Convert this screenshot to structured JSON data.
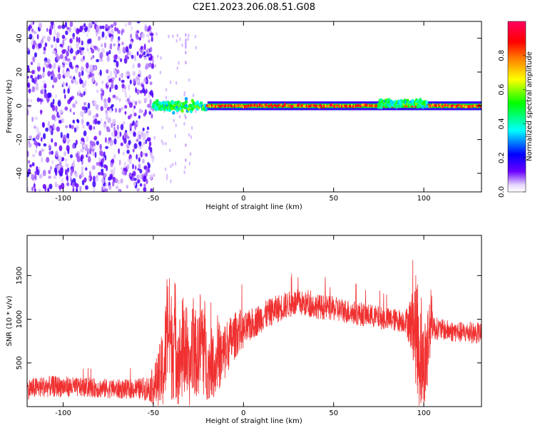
{
  "figure": {
    "title": "C2E1.2023.206.08.51.G08"
  },
  "chart_data": [
    {
      "type": "heatmap",
      "xlabel": "Height of straight line (km)",
      "ylabel": "Frequency (Hz)",
      "xlim": [
        -120,
        132
      ],
      "ylim": [
        -51,
        50
      ],
      "xticks": [
        -100,
        -50,
        0,
        50,
        100
      ],
      "yticks": [
        -40,
        -20,
        0,
        20,
        40
      ],
      "grid": false,
      "colorbar": {
        "label": "Normalized spectral amplitude",
        "range": [
          0,
          1
        ],
        "ticks": [
          "0.0",
          "0.2",
          "0.4",
          "0.6",
          "0.8"
        ],
        "colormap": "rainbow",
        "colors": [
          "#ffffff",
          "#6a00ff",
          "#0000ff",
          "#00ffff",
          "#00ff00",
          "#ffff00",
          "#ff8000",
          "#ff0000",
          "#ff0060"
        ]
      },
      "noise_region": {
        "x_range": [
          -120,
          -50
        ],
        "freq_range": [
          -51,
          50
        ]
      },
      "features": [
        {
          "x_range": [
            -50,
            -20
          ],
          "freq_center": 0,
          "freq_spread": 9,
          "amplitude_range": [
            0.3,
            0.6
          ]
        },
        {
          "x_range": [
            -20,
            132
          ],
          "freq_center": 0,
          "freq_spread": 2,
          "amplitude_range": [
            0.7,
            0.95
          ]
        },
        {
          "x_range": [
            75,
            102
          ],
          "freq_center": 1.5,
          "freq_spread": 6,
          "amplitude_range": [
            0.3,
            0.6
          ]
        }
      ]
    },
    {
      "type": "line",
      "xlabel": "Height of straight line (km)",
      "ylabel": "SNR (10 * v/v)",
      "xlim": [
        -120,
        132
      ],
      "ylim": [
        0,
        1960
      ],
      "xticks": [
        -100,
        -50,
        0,
        50,
        100
      ],
      "yticks": [
        500,
        1000,
        1500
      ],
      "grid": false,
      "series": [
        {
          "color": "#f03030",
          "x": [
            -120,
            -110,
            -100,
            -90,
            -80,
            -70,
            -60,
            -52,
            -48,
            -44,
            -42,
            -40,
            -38,
            -36,
            -34,
            -32,
            -30,
            -28,
            -26,
            -24,
            -22,
            -20,
            -18,
            -16,
            -14,
            -12,
            -10,
            -8,
            -6,
            -4,
            -2,
            0,
            5,
            10,
            15,
            20,
            25,
            30,
            35,
            40,
            50,
            60,
            70,
            80,
            90,
            94,
            96,
            98,
            100,
            102,
            104,
            106,
            110,
            120,
            132
          ],
          "y": [
            200,
            230,
            230,
            220,
            210,
            200,
            200,
            210,
            280,
            450,
            950,
            700,
            800,
            500,
            650,
            720,
            300,
            850,
            500,
            750,
            750,
            420,
            520,
            450,
            600,
            550,
            650,
            730,
            780,
            830,
            880,
            860,
            950,
            1020,
            1080,
            1130,
            1170,
            1190,
            1170,
            1150,
            1120,
            1080,
            1040,
            1000,
            980,
            950,
            850,
            600,
            450,
            650,
            1050,
            900,
            880,
            850,
            840
          ],
          "amplitude": [
            120,
            120,
            120,
            110,
            110,
            110,
            110,
            150,
            300,
            500,
            700,
            650,
            700,
            500,
            600,
            650,
            300,
            700,
            400,
            600,
            650,
            350,
            400,
            350,
            400,
            350,
            350,
            300,
            280,
            260,
            240,
            200,
            180,
            170,
            160,
            160,
            150,
            150,
            140,
            140,
            140,
            140,
            130,
            130,
            130,
            400,
            700,
            700,
            500,
            600,
            300,
            130,
            120,
            120,
            120
          ]
        }
      ]
    }
  ]
}
